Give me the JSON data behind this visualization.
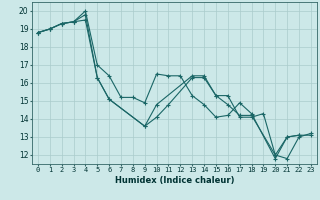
{
  "title": "",
  "xlabel": "Humidex (Indice chaleur)",
  "bg_color": "#cce8e8",
  "grid_color": "#aacccc",
  "line_color": "#1a6666",
  "marker": "+",
  "xlim": [
    -0.5,
    23.5
  ],
  "ylim": [
    11.5,
    20.5
  ],
  "xticks": [
    0,
    1,
    2,
    3,
    4,
    5,
    6,
    7,
    8,
    9,
    10,
    11,
    12,
    13,
    14,
    15,
    16,
    17,
    18,
    19,
    20,
    21,
    22,
    23
  ],
  "yticks": [
    12,
    13,
    14,
    15,
    16,
    17,
    18,
    19,
    20
  ],
  "sx1": [
    0,
    1,
    2,
    3,
    4,
    5,
    6,
    9,
    10,
    11,
    13,
    14,
    15,
    16,
    17,
    18,
    19,
    20,
    21,
    22
  ],
  "sy1": [
    18.8,
    19.0,
    19.3,
    19.4,
    19.8,
    16.3,
    15.1,
    13.6,
    14.1,
    14.8,
    16.3,
    16.3,
    15.3,
    15.3,
    14.1,
    14.1,
    14.3,
    12.0,
    13.0,
    13.1
  ],
  "sx2": [
    0,
    1,
    2,
    3,
    4,
    5,
    6,
    7,
    8,
    9,
    10,
    11,
    12,
    13,
    14,
    15,
    16,
    17,
    18,
    20,
    21,
    22,
    23
  ],
  "sy2": [
    18.8,
    19.0,
    19.3,
    19.4,
    20.0,
    17.0,
    16.4,
    15.2,
    15.2,
    14.9,
    16.5,
    16.4,
    16.4,
    15.3,
    14.8,
    14.1,
    14.2,
    14.9,
    14.3,
    11.8,
    13.0,
    13.1,
    13.1
  ],
  "sx3": [
    0,
    1,
    2,
    3,
    4,
    5,
    6,
    9,
    10,
    13,
    14,
    15,
    16,
    17,
    18,
    20,
    21,
    22,
    23
  ],
  "sy3": [
    18.8,
    19.0,
    19.3,
    19.4,
    19.5,
    16.3,
    15.1,
    13.6,
    14.8,
    16.4,
    16.4,
    15.3,
    14.8,
    14.2,
    14.2,
    12.0,
    11.8,
    13.0,
    13.2
  ],
  "xlabel_fontsize": 6.0,
  "tick_fontsize": 5.0,
  "linewidth": 0.8,
  "markersize": 3.0
}
